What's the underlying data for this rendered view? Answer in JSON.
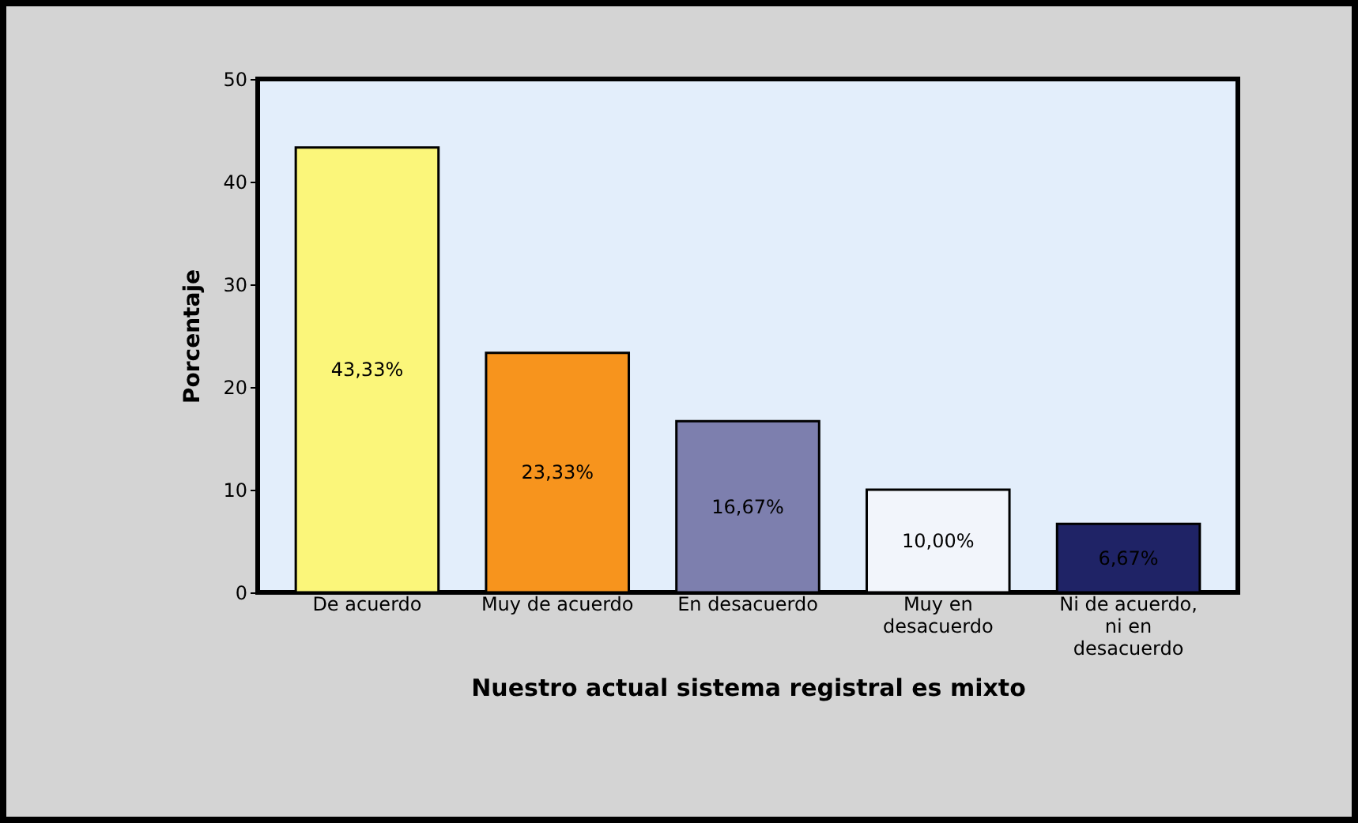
{
  "chart_data": {
    "type": "bar",
    "xlabel": "Nuestro actual sistema registral es mixto",
    "ylabel": "Porcentaje",
    "categories": [
      "De acuerdo",
      "Muy de acuerdo",
      "En desacuerdo",
      "Muy en desacuerdo",
      "Ni de acuerdo, ni en desacuerdo"
    ],
    "values": [
      43.33,
      23.33,
      16.67,
      10.0,
      6.67
    ],
    "colors": [
      "#fbf67a",
      "#f7941d",
      "#7d7fae",
      "#f2f5fb",
      "#1f2366"
    ],
    "value_labels": [
      "43,33%",
      "23,33%",
      "16,67%",
      "10,00%",
      "6,67%"
    ],
    "ylim": [
      0,
      50
    ],
    "yticks": [
      0,
      10,
      20,
      30,
      40,
      50
    ],
    "grid": false
  }
}
